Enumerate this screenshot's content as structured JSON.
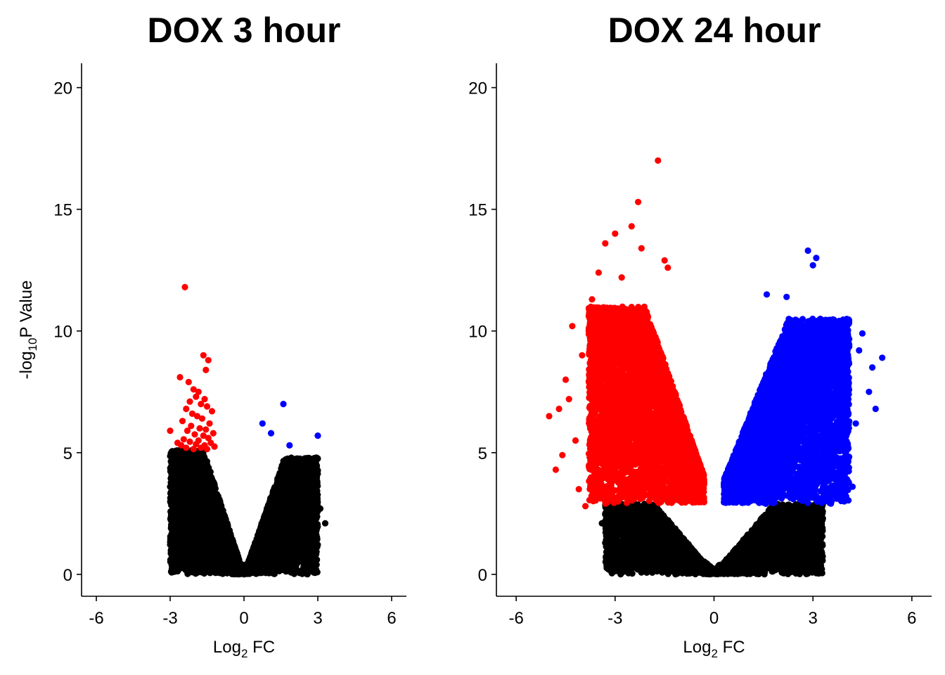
{
  "chart_data": [
    {
      "type": "scatter",
      "title": "DOX 3 hour",
      "xlabel": "Log2 FC",
      "xlabel_main": "Log",
      "xlabel_sub": "2",
      "xlabel_rest": " FC",
      "ylabel": "-log10P Value",
      "ylabel_main": "-log",
      "ylabel_sub": "10",
      "ylabel_rest": "P Value",
      "xlim": [
        -6.6,
        6.6
      ],
      "ylim": [
        -0.9,
        21
      ],
      "x_ticks": [
        -6,
        -3,
        0,
        3,
        6
      ],
      "x_tick_labels": [
        "-6",
        "-3",
        "0",
        "3",
        "6"
      ],
      "y_ticks": [
        0,
        5,
        10,
        15,
        20
      ],
      "y_tick_labels": [
        "0",
        "5",
        "10",
        "15",
        "20"
      ],
      "grid": false,
      "colors": {
        "down": "#ff0000",
        "up": "#0000ff",
        "ns": "#000000"
      },
      "significance_threshold": 5.1,
      "cloud": {
        "left": {
          "x_min": -3.0,
          "x_max": -0.1,
          "y_max": 5.1,
          "n": 3000
        },
        "right": {
          "x_min": 0.1,
          "x_max": 3.0,
          "y_max": 4.8,
          "n": 2600
        }
      },
      "series": [
        {
          "group": "down",
          "points": [
            [
              -2.4,
              11.8
            ],
            [
              -1.65,
              9.0
            ],
            [
              -1.45,
              8.8
            ],
            [
              -1.55,
              8.4
            ],
            [
              -2.6,
              8.1
            ],
            [
              -2.25,
              7.9
            ],
            [
              -2.05,
              7.6
            ],
            [
              -1.85,
              7.5
            ],
            [
              -1.95,
              7.3
            ],
            [
              -1.6,
              7.2
            ],
            [
              -2.2,
              7.1
            ],
            [
              -1.75,
              7.0
            ],
            [
              -1.5,
              6.9
            ],
            [
              -2.35,
              6.8
            ],
            [
              -1.3,
              6.7
            ],
            [
              -2.1,
              6.6
            ],
            [
              -1.9,
              6.5
            ],
            [
              -1.7,
              6.4
            ],
            [
              -2.5,
              6.3
            ],
            [
              -1.4,
              6.2
            ],
            [
              -2.15,
              6.1
            ],
            [
              -1.8,
              6.0
            ],
            [
              -1.55,
              5.95
            ],
            [
              -2.3,
              5.9
            ],
            [
              -3.0,
              5.9
            ],
            [
              -1.25,
              5.8
            ],
            [
              -2.0,
              5.75
            ],
            [
              -1.65,
              5.7
            ],
            [
              -1.45,
              5.6
            ],
            [
              -2.45,
              5.55
            ],
            [
              -1.85,
              5.5
            ],
            [
              -2.2,
              5.45
            ],
            [
              -1.35,
              5.4
            ],
            [
              -2.7,
              5.4
            ],
            [
              -1.95,
              5.35
            ],
            [
              -1.6,
              5.3
            ],
            [
              -2.55,
              5.3
            ],
            [
              -1.2,
              5.25
            ],
            [
              -2.35,
              5.2
            ],
            [
              -1.75,
              5.2
            ],
            [
              -2.05,
              5.15
            ],
            [
              -1.5,
              5.15
            ]
          ]
        },
        {
          "group": "up",
          "points": [
            [
              1.6,
              7.0
            ],
            [
              0.75,
              6.2
            ],
            [
              3.0,
              5.7
            ],
            [
              1.1,
              5.8
            ],
            [
              1.85,
              5.3
            ]
          ]
        }
      ]
    },
    {
      "type": "scatter",
      "title": "DOX 24 hour",
      "xlabel": "Log2 FC",
      "xlabel_main": "Log",
      "xlabel_sub": "2",
      "xlabel_rest": " FC",
      "xlim": [
        -6.6,
        6.6
      ],
      "ylim": [
        -0.9,
        21
      ],
      "x_ticks": [
        -6,
        -3,
        0,
        3,
        6
      ],
      "x_tick_labels": [
        "-6",
        "-3",
        "0",
        "3",
        "6"
      ],
      "y_ticks": [
        0,
        5,
        10,
        15,
        20
      ],
      "y_tick_labels": [
        "0",
        "5",
        "10",
        "15",
        "20"
      ],
      "grid": false,
      "colors": {
        "down": "#ff0000",
        "up": "#0000ff",
        "ns": "#000000"
      },
      "significance_threshold": 2.9,
      "cloud": {
        "down": {
          "x_min": -3.8,
          "x_max": -0.3,
          "y_min": 2.9,
          "y_max": 11.0,
          "n": 4500
        },
        "up": {
          "x_min": 0.3,
          "x_max": 4.1,
          "y_min": 2.9,
          "y_max": 10.5,
          "n": 4500
        },
        "ns_left": {
          "x_min": -3.3,
          "x_max": -0.1,
          "y_max": 2.9,
          "n": 2200
        },
        "ns_right": {
          "x_min": 0.1,
          "x_max": 3.3,
          "y_max": 2.9,
          "n": 2200
        }
      },
      "series": [
        {
          "group": "down",
          "points": [
            [
              -1.7,
              17.0
            ],
            [
              -2.3,
              15.3
            ],
            [
              -2.5,
              14.3
            ],
            [
              -3.0,
              14.0
            ],
            [
              -2.2,
              13.4
            ],
            [
              -3.3,
              13.6
            ],
            [
              -1.5,
              12.9
            ],
            [
              -1.4,
              12.6
            ],
            [
              -3.5,
              12.4
            ],
            [
              -2.8,
              12.2
            ],
            [
              -4.3,
              10.2
            ],
            [
              -3.8,
              10.0
            ],
            [
              -5.0,
              6.5
            ],
            [
              -4.8,
              4.3
            ],
            [
              -4.5,
              8.0
            ],
            [
              -4.7,
              6.8
            ],
            [
              -4.2,
              5.5
            ],
            [
              -4.4,
              7.2
            ],
            [
              -4.0,
              9.0
            ],
            [
              -4.1,
              3.5
            ],
            [
              -3.9,
              2.8
            ],
            [
              -4.6,
              4.9
            ],
            [
              -3.7,
              11.3
            ]
          ]
        },
        {
          "group": "up",
          "points": [
            [
              2.85,
              13.3
            ],
            [
              3.1,
              13.0
            ],
            [
              3.0,
              12.7
            ],
            [
              1.6,
              11.5
            ],
            [
              2.2,
              11.4
            ],
            [
              4.5,
              9.9
            ],
            [
              5.1,
              8.9
            ],
            [
              4.8,
              8.5
            ],
            [
              4.7,
              7.5
            ],
            [
              4.9,
              6.8
            ],
            [
              4.3,
              6.2
            ],
            [
              4.4,
              9.2
            ],
            [
              3.8,
              4.4
            ],
            [
              4.2,
              3.6
            ],
            [
              3.6,
              3.3
            ]
          ]
        },
        {
          "group": "ns",
          "points": [
            [
              -3.4,
              2.1
            ],
            [
              -2.3,
              1.2
            ],
            [
              -2.2,
              0.7
            ],
            [
              3.3,
              2.3
            ],
            [
              3.0,
              1.3
            ],
            [
              2.8,
              0.7
            ],
            [
              3.1,
              1.9
            ],
            [
              -2.6,
              1.6
            ]
          ]
        }
      ]
    }
  ]
}
